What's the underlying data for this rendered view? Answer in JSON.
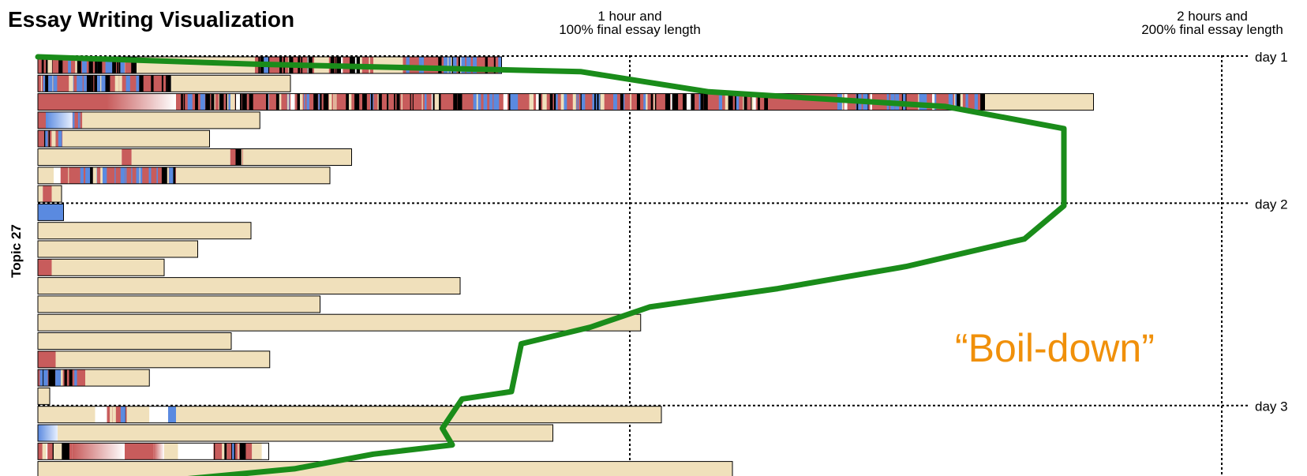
{
  "colors": {
    "text": "#f0e0bb",
    "insert": "#c85c5c",
    "delete": "#5a8ae0",
    "black": "#000000",
    "blank": "#ffffff",
    "trajectory": "#1a8c1a",
    "annotation": "#f0900a"
  },
  "chart_data": {
    "type": "bar",
    "title": "Essay Writing Visualization",
    "ylabel": "Topic 27",
    "x_max_minutes": 120,
    "annotations": [
      {
        "name": "one-hour",
        "lines": [
          "1 hour and",
          "100% final essay length"
        ]
      },
      {
        "name": "two-hours",
        "lines": [
          "2 hours and",
          "200% final essay length"
        ]
      }
    ],
    "days": [
      {
        "label": "day 1",
        "row": 0
      },
      {
        "label": "day 2",
        "row": 8
      },
      {
        "label": "day 3",
        "row": 19
      }
    ],
    "callout": "“Boil-down”",
    "sessions": [
      {
        "length": 47.0,
        "segments": [
          [
            0,
            10,
            "mix"
          ],
          [
            10,
            22,
            "text"
          ],
          [
            22,
            28,
            "mix"
          ],
          [
            28,
            29.5,
            "text"
          ],
          [
            29.5,
            34,
            "mix"
          ],
          [
            34,
            37,
            "text"
          ],
          [
            37,
            47,
            "mixblue"
          ]
        ]
      },
      {
        "length": 25.6,
        "segments": [
          [
            0,
            11,
            "mixblue"
          ],
          [
            11,
            13.5,
            "mix"
          ],
          [
            13.5,
            25.6,
            "text"
          ]
        ]
      },
      {
        "length": 107.0,
        "segments": [
          [
            0,
            7,
            "insert"
          ],
          [
            7,
            14,
            "fade"
          ],
          [
            14,
            24,
            "mix"
          ],
          [
            24,
            43,
            "mix"
          ],
          [
            43,
            60,
            "mixblue"
          ],
          [
            60,
            74,
            "mix"
          ],
          [
            74,
            81,
            "insert"
          ],
          [
            81,
            96,
            "mixblue"
          ],
          [
            96,
            107,
            "text"
          ]
        ]
      },
      {
        "length": 22.5,
        "segments": [
          [
            0,
            0.8,
            "insert"
          ],
          [
            0.8,
            3.5,
            "gradblue"
          ],
          [
            3.5,
            4.5,
            "mixblue"
          ],
          [
            4.5,
            22.5,
            "text"
          ]
        ]
      },
      {
        "length": 17.4,
        "segments": [
          [
            0,
            2.5,
            "mix"
          ],
          [
            2.5,
            17.4,
            "text"
          ]
        ]
      },
      {
        "length": 31.8,
        "segments": [
          [
            0,
            8.5,
            "text"
          ],
          [
            8.5,
            9.5,
            "insert"
          ],
          [
            9.5,
            19.5,
            "text"
          ],
          [
            19.5,
            20.8,
            "mix"
          ],
          [
            20.8,
            31.8,
            "text"
          ]
        ]
      },
      {
        "length": 29.6,
        "segments": [
          [
            0,
            1.6,
            "text"
          ],
          [
            1.6,
            2.3,
            "blank"
          ],
          [
            2.3,
            14,
            "mixblue"
          ],
          [
            14,
            29.6,
            "text"
          ]
        ]
      },
      {
        "length": 2.4,
        "segments": [
          [
            0,
            0.5,
            "text"
          ],
          [
            0.5,
            1.4,
            "insert"
          ],
          [
            1.4,
            2.4,
            "text"
          ]
        ]
      },
      {
        "length": 2.6,
        "segments": [
          [
            0,
            2.6,
            "delete"
          ]
        ]
      },
      {
        "length": 21.6,
        "segments": [
          [
            0,
            21.6,
            "text"
          ]
        ]
      },
      {
        "length": 16.2,
        "segments": [
          [
            0,
            16.2,
            "text"
          ]
        ]
      },
      {
        "length": 12.8,
        "segments": [
          [
            0,
            1.4,
            "insert"
          ],
          [
            1.4,
            12.8,
            "text"
          ]
        ]
      },
      {
        "length": 42.8,
        "segments": [
          [
            0,
            42.8,
            "text"
          ]
        ]
      },
      {
        "length": 28.6,
        "segments": [
          [
            0,
            28.6,
            "text"
          ]
        ]
      },
      {
        "length": 61.1,
        "segments": [
          [
            0,
            61.1,
            "text"
          ]
        ]
      },
      {
        "length": 19.6,
        "segments": [
          [
            0,
            19.6,
            "text"
          ]
        ]
      },
      {
        "length": 23.5,
        "segments": [
          [
            0,
            1.8,
            "insert"
          ],
          [
            1.8,
            23.5,
            "text"
          ]
        ]
      },
      {
        "length": 11.3,
        "segments": [
          [
            0,
            4.8,
            "mixblue"
          ],
          [
            4.8,
            11.3,
            "text"
          ]
        ]
      },
      {
        "length": 1.2,
        "segments": [
          [
            0,
            1.2,
            "text"
          ]
        ]
      },
      {
        "length": 63.2,
        "segments": [
          [
            0,
            5.8,
            "text"
          ],
          [
            5.8,
            7,
            "blank"
          ],
          [
            7,
            9,
            "mix"
          ],
          [
            9,
            11.3,
            "text"
          ],
          [
            11.3,
            13.2,
            "blank"
          ],
          [
            13.2,
            14,
            "delete"
          ],
          [
            14,
            63.2,
            "text"
          ]
        ]
      },
      {
        "length": 52.2,
        "segments": [
          [
            0,
            2,
            "gradblue"
          ],
          [
            2,
            52.2,
            "text"
          ]
        ]
      },
      {
        "length": 23.4,
        "segments": [
          [
            0,
            3.5,
            "mix"
          ],
          [
            3.5,
            8.8,
            "fade"
          ],
          [
            8.8,
            11.7,
            "insert"
          ],
          [
            11.7,
            12.8,
            "fade"
          ],
          [
            12.8,
            14.2,
            "text"
          ],
          [
            14.2,
            17.8,
            "blank"
          ],
          [
            17.8,
            21.7,
            "mix"
          ],
          [
            21.7,
            22.7,
            "text"
          ],
          [
            22.7,
            23.4,
            "blank"
          ]
        ]
      },
      {
        "length": 70.4,
        "segments": [
          [
            0,
            70.4,
            "text"
          ]
        ]
      }
    ],
    "trajectory": [
      [
        0,
        0
      ],
      [
        22,
        0.4
      ],
      [
        55,
        0.8
      ],
      [
        68,
        1.9
      ],
      [
        92,
        2.7
      ],
      [
        104,
        3.9
      ],
      [
        104,
        5.4
      ],
      [
        104,
        8.1
      ],
      [
        100,
        9.9
      ],
      [
        88,
        11.4
      ],
      [
        75,
        12.6
      ],
      [
        62,
        13.6
      ],
      [
        56,
        14.7
      ],
      [
        49,
        15.6
      ],
      [
        48,
        18.2
      ],
      [
        43,
        18.6
      ],
      [
        41,
        20.2
      ],
      [
        42,
        21.1
      ],
      [
        34,
        21.6
      ],
      [
        26,
        22.4
      ],
      [
        12,
        23.1
      ],
      [
        4,
        24.0
      ]
    ]
  }
}
